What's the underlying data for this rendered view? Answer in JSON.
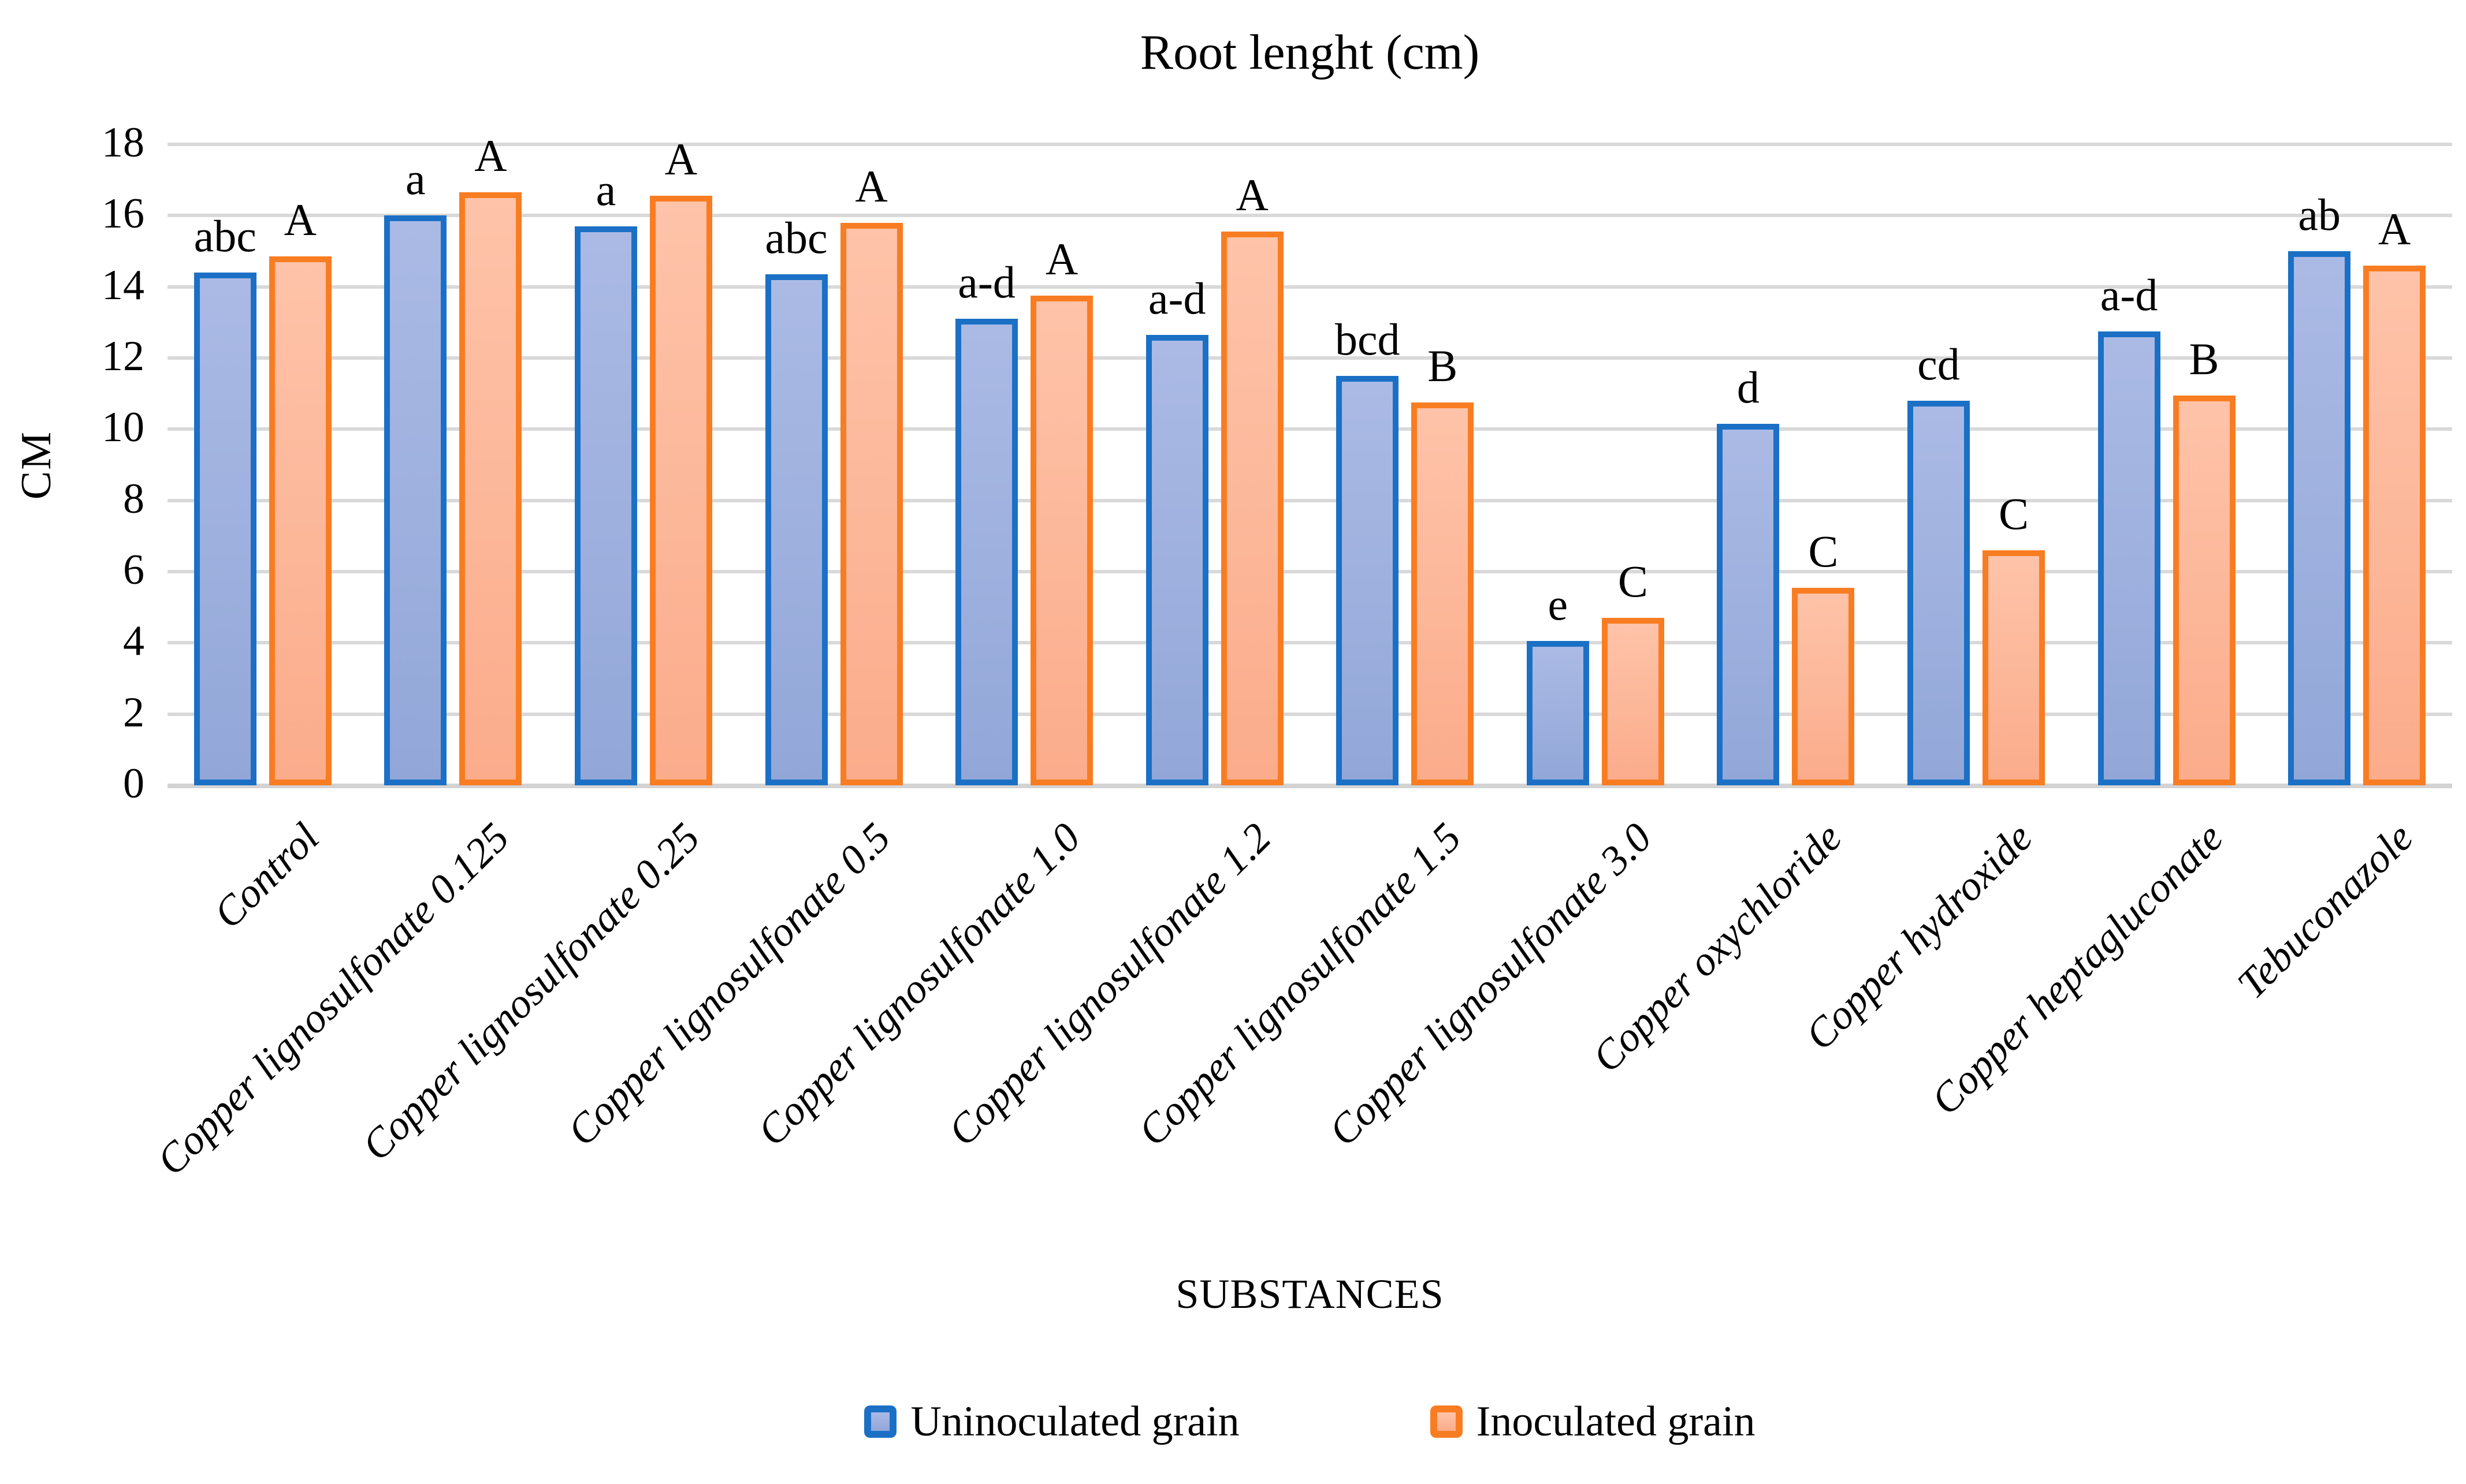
{
  "chart_data": {
    "type": "bar",
    "title": "Root lenght (cm)",
    "xlabel": "SUBSTANCES",
    "ylabel": "CM",
    "ylim": [
      0,
      18
    ],
    "yticks": [
      18,
      16,
      14,
      12,
      10,
      8,
      6,
      4,
      2,
      0
    ],
    "grid": "horizontal",
    "legend_position": "bottom",
    "categories": [
      "Control",
      "Copper lignosulfonate 0.125",
      "Copper lignosulfonate 0.25",
      "Copper lignosulfonate 0.5",
      "Copper lignosulfonate 1.0",
      "Copper lignosulfonate 1.2",
      "Copper lignosulfonate 1.5",
      "Copper lignosulfonate 3.0",
      "Copper oxychloride",
      "Copper hydroxide",
      "Copper heptagluconate",
      "Tebuconazole"
    ],
    "series": [
      {
        "name": "Uninoculated grain",
        "values": [
          14.4,
          16.0,
          15.7,
          14.35,
          13.1,
          12.65,
          11.5,
          4.05,
          10.15,
          10.8,
          12.75,
          15.0
        ],
        "sig_labels": [
          "abc",
          "a",
          "a",
          "abc",
          "a-d",
          "a-d",
          "bcd",
          "e",
          "d",
          "cd",
          "a-d",
          "ab"
        ],
        "border_color": "#1b70c5",
        "fill_top": "#abbae5",
        "fill_bottom": "#92a7d8"
      },
      {
        "name": "Inoculated grain",
        "values": [
          14.85,
          16.65,
          16.55,
          15.8,
          13.75,
          15.55,
          10.75,
          4.7,
          5.55,
          6.6,
          10.95,
          14.6
        ],
        "sig_labels": [
          "A",
          "A",
          "A",
          "A",
          "A",
          "A",
          "B",
          "C",
          "C",
          "C",
          "B",
          "A"
        ],
        "border_color": "#f87d22",
        "fill_top": "#fec3a9",
        "fill_bottom": "#fbac8b"
      }
    ],
    "colors": {
      "gridline": "#d9d9d9",
      "baseline": "#d3d3d3",
      "text": "#000000"
    }
  }
}
